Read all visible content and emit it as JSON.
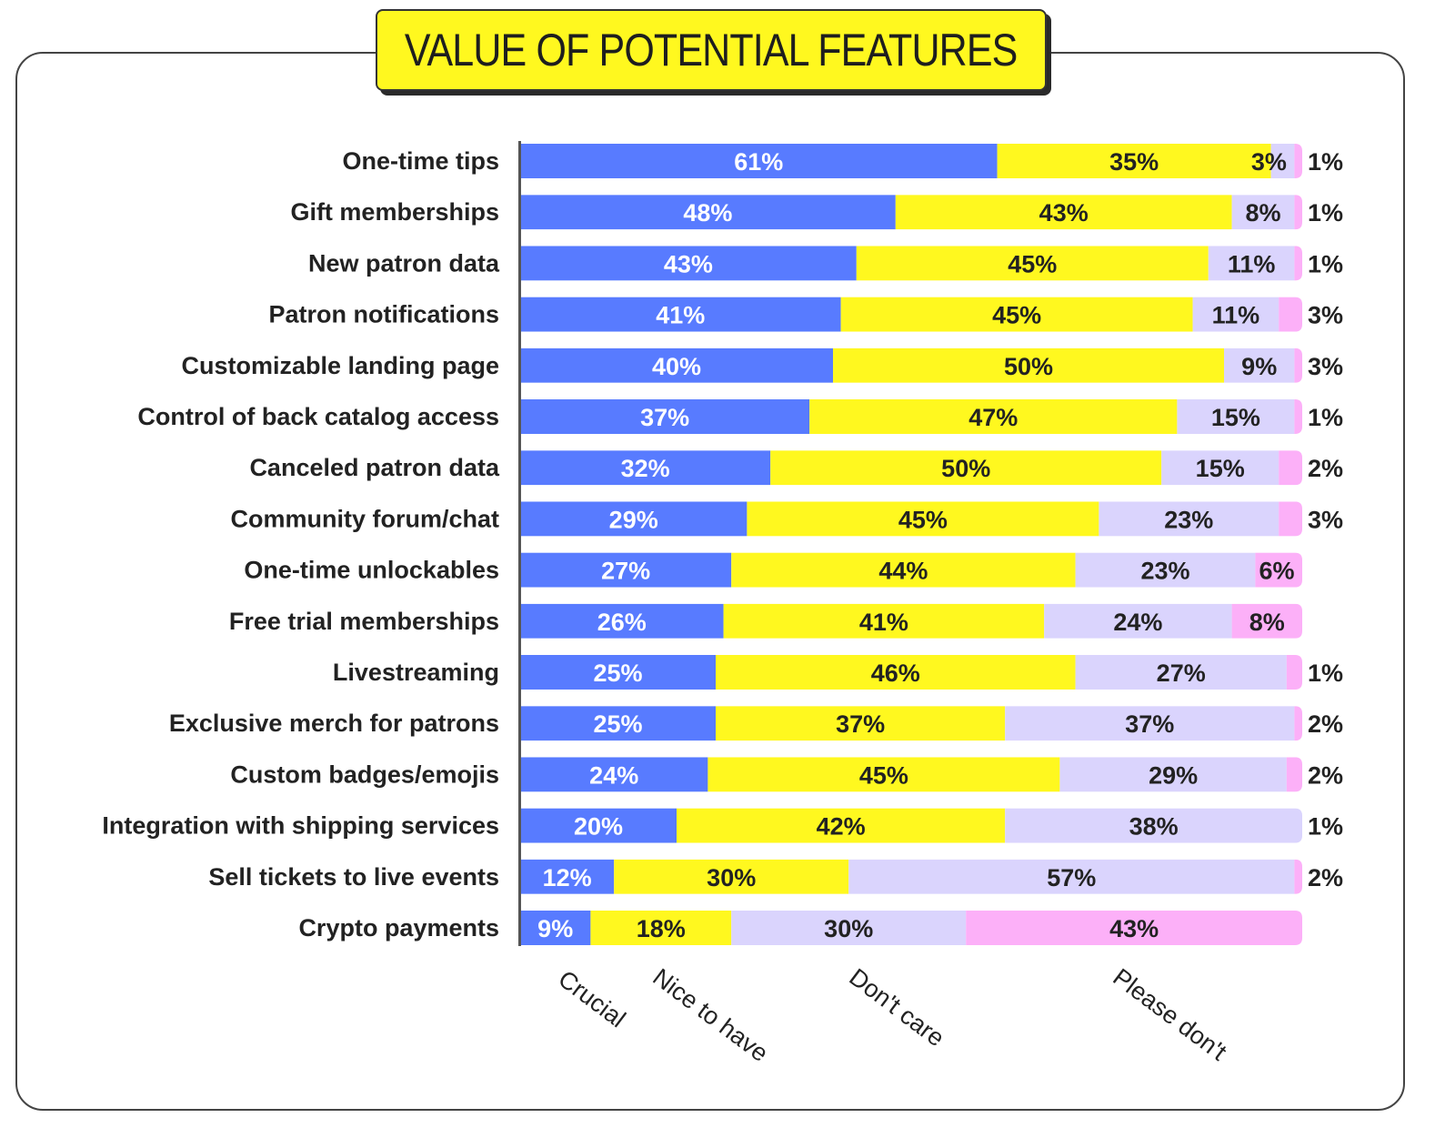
{
  "chart_data": {
    "type": "bar",
    "orientation": "horizontal",
    "stacked": true,
    "title": "VALUE OF POTENTIAL FEATURES",
    "xlabel": "",
    "ylabel": "",
    "xlim": [
      0,
      100
    ],
    "grid": false,
    "legend_position": "bottom (rotated category labels)",
    "categories": [
      "One-time tips",
      "Gift memberships",
      "New patron data",
      "Patron notifications",
      "Customizable landing page",
      "Control of back catalog access",
      "Canceled patron data",
      "Community forum/chat",
      "One-time unlockables",
      "Free trial memberships",
      "Livestreaming",
      "Exclusive merch for patrons",
      "Custom badges/emojis",
      "Integration with shipping services",
      "Sell tickets to live events",
      "Crypto payments"
    ],
    "series": [
      {
        "name": "Crucial",
        "color": "#587bff",
        "label_color": "#ffffff",
        "values": [
          61,
          48,
          43,
          41,
          40,
          37,
          32,
          29,
          27,
          26,
          25,
          25,
          24,
          20,
          12,
          9
        ]
      },
      {
        "name": "Nice to have",
        "color": "#fff81f",
        "label_color": "#222222",
        "values": [
          35,
          43,
          45,
          45,
          50,
          47,
          50,
          45,
          44,
          41,
          46,
          37,
          45,
          42,
          30,
          18
        ]
      },
      {
        "name": "Don't care",
        "color": "#dad4fd",
        "label_color": "#222222",
        "values": [
          3,
          8,
          11,
          11,
          9,
          15,
          15,
          23,
          23,
          24,
          27,
          37,
          29,
          38,
          57,
          30
        ]
      },
      {
        "name": "Please don't",
        "color": "#fcb0f8",
        "label_color": "#222222",
        "values": [
          1,
          1,
          1,
          3,
          3,
          1,
          2,
          3,
          6,
          8,
          1,
          2,
          2,
          1,
          2,
          43
        ]
      }
    ],
    "label_outside_threshold_note": "Please don't values below 5% are printed to the right of the bar"
  }
}
